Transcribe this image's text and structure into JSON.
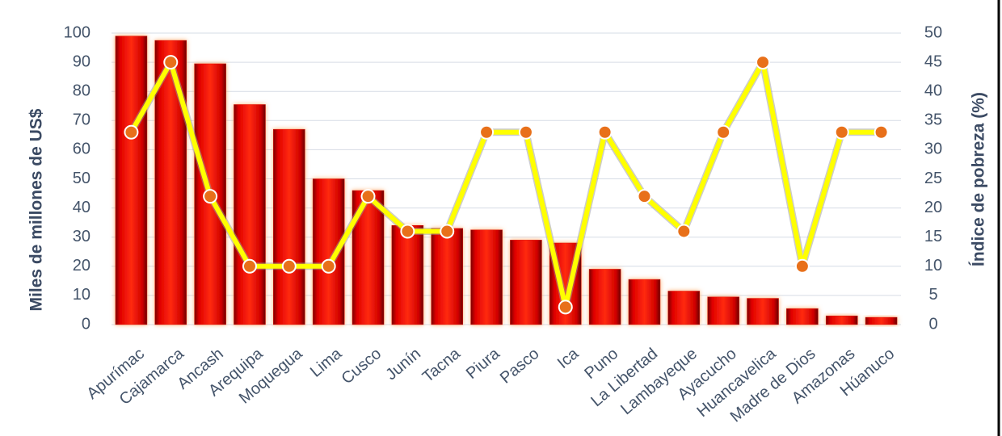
{
  "chart_data": {
    "type": "bar-line",
    "y_label": "Miles de millones de US$",
    "y2_label": "Índice de pobreza (%)",
    "categories": [
      "Apurímac",
      "Cajamarca",
      "Ancash",
      "Arequipa",
      "Moquegua",
      "Lima",
      "Cusco",
      "Junín",
      "Tacna",
      "Piura",
      "Pasco",
      "Ica",
      "Puno",
      "La Libertad",
      "Lambayeque",
      "Ayacucho",
      "Huancavelica",
      "Madre de Dios",
      "Amazonas",
      "Húanuco"
    ],
    "series": [
      {
        "type": "bar",
        "color": "#e00000",
        "axis": "y",
        "values": [
          99,
          97.5,
          89.5,
          75.5,
          67,
          50,
          46,
          34,
          33,
          32.5,
          29,
          28,
          19,
          15.5,
          11.5,
          9.5,
          9,
          5.5,
          3,
          2.5
        ]
      },
      {
        "type": "line",
        "color": "#ffff00",
        "marker_color": "#e8701a",
        "axis": "y2",
        "values": [
          33,
          45,
          22,
          10,
          10,
          10,
          22,
          16,
          16,
          33,
          33,
          3,
          33,
          22,
          16,
          33,
          45,
          10,
          33,
          33
        ]
      }
    ],
    "ylim": [
      0,
      100
    ],
    "yticks": [
      0,
      10,
      20,
      30,
      40,
      50,
      60,
      70,
      80,
      90,
      100
    ],
    "y2lim": [
      0,
      50
    ],
    "y2ticks": [
      0,
      5,
      10,
      15,
      20,
      25,
      30,
      35,
      40,
      45,
      50
    ],
    "grid": true
  }
}
